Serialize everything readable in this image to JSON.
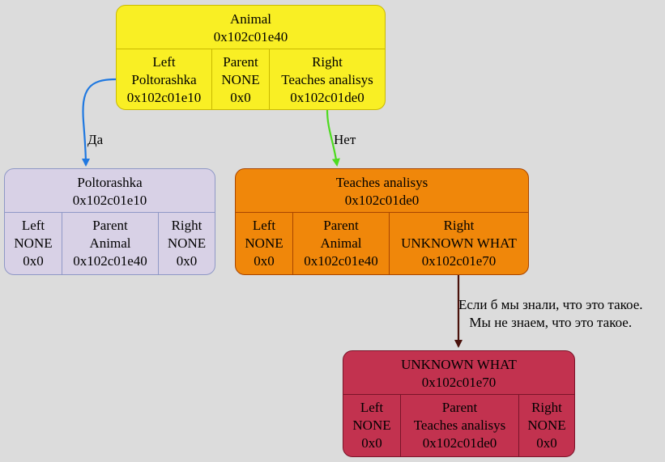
{
  "nodes": {
    "animal": {
      "title": "Animal",
      "address": "0x102c01e40",
      "left": {
        "label": "Left",
        "name": "Poltorashka",
        "address": "0x102c01e10"
      },
      "parent": {
        "label": "Parent",
        "name": "NONE",
        "address": "0x0"
      },
      "right": {
        "label": "Right",
        "name": "Teaches analisys",
        "address": "0x102c01de0"
      },
      "fill_color": "#f9ef24"
    },
    "poltorashka": {
      "title": "Poltorashka",
      "address": "0x102c01e10",
      "left": {
        "label": "Left",
        "name": "NONE",
        "address": "0x0"
      },
      "parent": {
        "label": "Parent",
        "name": "Animal",
        "address": "0x102c01e40"
      },
      "right": {
        "label": "Right",
        "name": "NONE",
        "address": "0x0"
      },
      "fill_color": "#d8d1e6"
    },
    "teaches": {
      "title": "Teaches analisys",
      "address": "0x102c01de0",
      "left": {
        "label": "Left",
        "name": "NONE",
        "address": "0x0"
      },
      "parent": {
        "label": "Parent",
        "name": "Animal",
        "address": "0x102c01e40"
      },
      "right": {
        "label": "Right",
        "name": "UNKNOWN WHAT",
        "address": "0x102c01e70"
      },
      "fill_color": "#f0870a"
    },
    "unknown": {
      "title": "UNKNOWN WHAT",
      "address": "0x102c01e70",
      "left": {
        "label": "Left",
        "name": "NONE",
        "address": "0x0"
      },
      "parent": {
        "label": "Parent",
        "name": "Teaches analisys",
        "address": "0x102c01de0"
      },
      "right": {
        "label": "Right",
        "name": "NONE",
        "address": "0x0"
      },
      "fill_color": "#c2324f"
    }
  },
  "edges": {
    "yes": {
      "label": "Да",
      "color": "#1f78e0"
    },
    "no": {
      "label": "Нет",
      "color": "#4ddb1f"
    },
    "child": {
      "label_line1": "Если б мы знали, что это такое.",
      "label_line2": "Мы не знаем, что это такое.",
      "color": "#4a120c"
    }
  }
}
